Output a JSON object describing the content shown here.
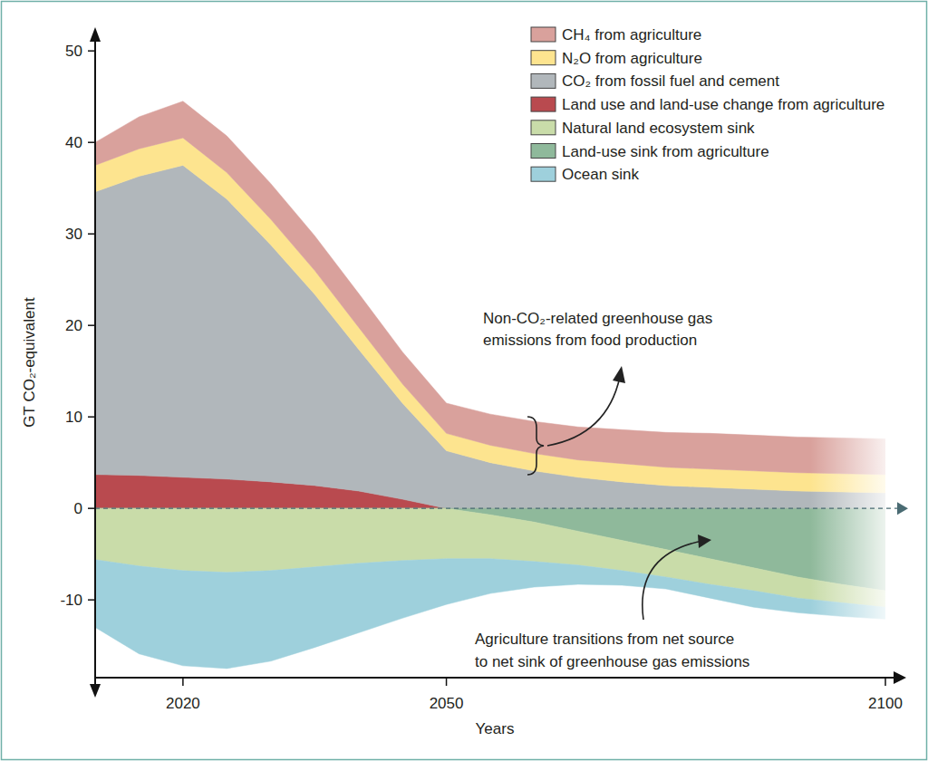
{
  "chart_data": {
    "type": "area",
    "stacked": true,
    "grid": false,
    "legend": "top-right",
    "x_label": "Years",
    "y_label": "GT CO₂-equivalent",
    "x": [
      2010,
      2015,
      2020,
      2025,
      2030,
      2035,
      2040,
      2045,
      2050,
      2055,
      2060,
      2065,
      2070,
      2075,
      2080,
      2085,
      2090,
      2095,
      2100
    ],
    "xlim": [
      2010,
      2100
    ],
    "xticks": [
      2020,
      2050,
      2100
    ],
    "ylim": [
      -18.5,
      52
    ],
    "yticks": [
      -10,
      0,
      10,
      20,
      30,
      40,
      50
    ],
    "series": [
      {
        "name": "CH₄ from agriculture",
        "color": "#d9a19c",
        "values": [
          2.5,
          3.5,
          4.0,
          4.0,
          3.9,
          3.8,
          3.7,
          3.5,
          3.3,
          3.4,
          3.5,
          3.6,
          3.7,
          3.8,
          3.9,
          3.9,
          3.9,
          3.9,
          3.9
        ]
      },
      {
        "name": "N₂O from agriculture",
        "color": "#fde48f",
        "values": [
          2.9,
          3.0,
          3.0,
          2.9,
          2.8,
          2.6,
          2.4,
          2.1,
          1.9,
          1.9,
          1.9,
          1.9,
          2.0,
          2.0,
          2.0,
          2.0,
          2.0,
          2.0,
          2.0
        ]
      },
      {
        "name": "CO₂ from fossil fuel and cement",
        "color": "#b1b7bb",
        "values": [
          30.9,
          32.7,
          34.1,
          30.6,
          25.9,
          20.9,
          15.5,
          10.5,
          6.3,
          5.0,
          4.1,
          3.4,
          2.9,
          2.5,
          2.3,
          2.1,
          1.9,
          1.8,
          1.7
        ]
      },
      {
        "name": "Land use and land-use change from agriculture",
        "color": "#b94a4f",
        "values": [
          3.7,
          3.6,
          3.4,
          3.2,
          2.9,
          2.5,
          1.9,
          1.0,
          0,
          0,
          0,
          0,
          0,
          0,
          0,
          0,
          0,
          0,
          0
        ]
      },
      {
        "name": "Natural land ecosystem sink",
        "color": "#c9dca9",
        "values": [
          -5.6,
          -6.3,
          -6.8,
          -7.0,
          -6.8,
          -6.4,
          -6.0,
          -5.7,
          -5.5,
          -4.8,
          -4.3,
          -3.7,
          -3.3,
          -3.0,
          -2.8,
          -2.5,
          -2.3,
          -2.0,
          -1.8
        ]
      },
      {
        "name": "Land-use sink from agriculture",
        "color": "#8fb99b",
        "values": [
          0,
          0,
          0,
          0,
          0,
          0,
          0,
          0,
          0,
          -0.7,
          -1.5,
          -2.5,
          -3.5,
          -4.5,
          -5.5,
          -6.5,
          -7.5,
          -8.3,
          -9.0
        ]
      },
      {
        "name": "Ocean sink",
        "color": "#9ed0dc",
        "values": [
          -7.4,
          -9.6,
          -10.4,
          -10.5,
          -9.9,
          -8.8,
          -7.6,
          -6.3,
          -5.0,
          -3.8,
          -2.8,
          -2.1,
          -1.6,
          -1.3,
          -1.5,
          -1.8,
          -1.6,
          -1.5,
          -1.3
        ]
      }
    ],
    "annotations": [
      [
        "Non-CO₂-related greenhouse gas",
        "emissions from food production"
      ],
      [
        "Agriculture transitions from net source",
        "to net sink of greenhouse gas emissions"
      ]
    ]
  }
}
